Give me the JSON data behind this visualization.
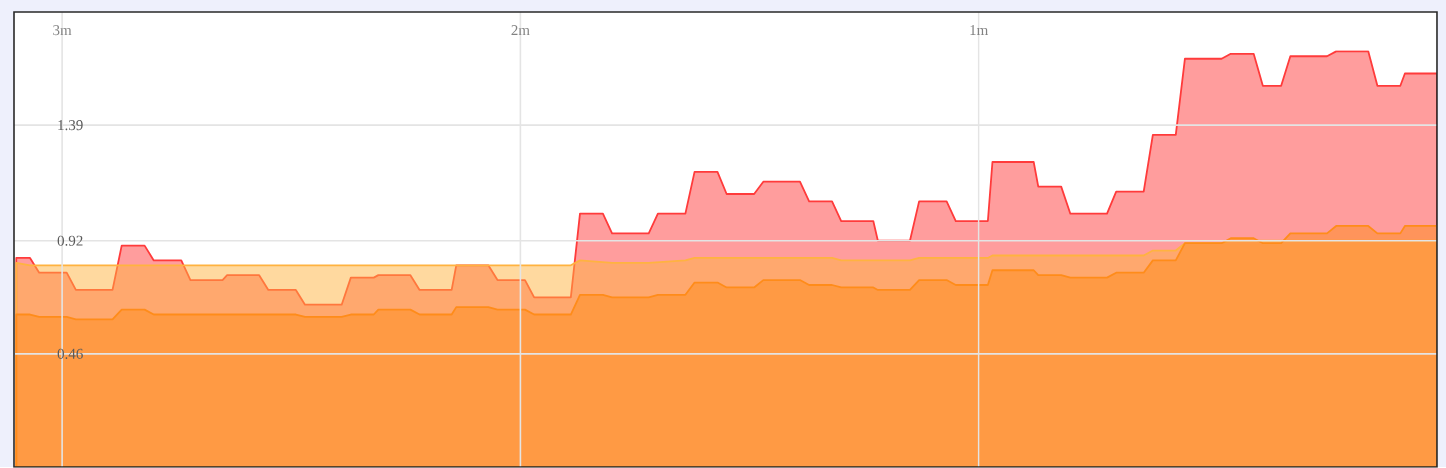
{
  "chart_data": {
    "type": "area",
    "xlim": [
      3.105,
      0
    ],
    "ylim": [
      0,
      1.85
    ],
    "xticks": [
      {
        "value": 3,
        "label": "3m"
      },
      {
        "value": 2,
        "label": "2m"
      },
      {
        "value": 1,
        "label": "1m"
      }
    ],
    "yticks": [
      0.46,
      0.92,
      1.39
    ],
    "grid": true,
    "series": [
      {
        "color": "#ff3b3b",
        "x": [
          3.1,
          3.07,
          3.05,
          2.99,
          2.97,
          2.89,
          2.87,
          2.82,
          2.8,
          2.74,
          2.72,
          2.65,
          2.64,
          2.57,
          2.55,
          2.49,
          2.47,
          2.39,
          2.37,
          2.32,
          2.31,
          2.24,
          2.22,
          2.15,
          2.14,
          2.07,
          2.05,
          1.99,
          1.97,
          1.89,
          1.87,
          1.82,
          1.8,
          1.72,
          1.7,
          1.64,
          1.62,
          1.57,
          1.55,
          1.49,
          1.47,
          1.39,
          1.37,
          1.32,
          1.3,
          1.23,
          1.22,
          1.15,
          1.13,
          1.07,
          1.05,
          0.98,
          0.97,
          0.88,
          0.87,
          0.82,
          0.8,
          0.72,
          0.7,
          0.64,
          0.62,
          0.57,
          0.55,
          0.47,
          0.45,
          0.4,
          0.38,
          0.34,
          0.32,
          0.24,
          0.22,
          0.15,
          0.13,
          0.08,
          0.07,
          0
        ],
        "values": [
          0.85,
          0.85,
          0.79,
          0.79,
          0.72,
          0.72,
          0.9,
          0.9,
          0.84,
          0.84,
          0.76,
          0.76,
          0.78,
          0.78,
          0.72,
          0.72,
          0.66,
          0.66,
          0.77,
          0.77,
          0.78,
          0.78,
          0.72,
          0.72,
          0.82,
          0.82,
          0.76,
          0.76,
          0.69,
          0.69,
          1.03,
          1.03,
          0.95,
          0.95,
          1.03,
          1.03,
          1.2,
          1.2,
          1.11,
          1.11,
          1.16,
          1.16,
          1.08,
          1.08,
          1.0,
          1.0,
          0.92,
          0.92,
          1.08,
          1.08,
          1.0,
          1.0,
          1.24,
          1.24,
          1.14,
          1.14,
          1.03,
          1.03,
          1.12,
          1.12,
          1.35,
          1.35,
          1.66,
          1.66,
          1.68,
          1.68,
          1.55,
          1.55,
          1.67,
          1.67,
          1.69,
          1.69,
          1.55,
          1.55,
          1.6,
          1.6
        ]
      },
      {
        "color": "#ffb340",
        "x": [
          3.1,
          3.07,
          1.89,
          1.87,
          1.8,
          1.72,
          1.64,
          1.62,
          1.32,
          1.3,
          1.15,
          1.13,
          0.98,
          0.97,
          0.64,
          0.62,
          0.57,
          0.55,
          0.47,
          0.45,
          0
        ],
        "values": [
          0.83,
          0.82,
          0.82,
          0.84,
          0.83,
          0.83,
          0.84,
          0.85,
          0.85,
          0.84,
          0.84,
          0.85,
          0.85,
          0.86,
          0.86,
          0.88,
          0.88,
          0.91,
          0.91,
          0.92,
          0.92
        ]
      },
      {
        "color": "#ff8c1a",
        "x": [
          3.1,
          3.07,
          3.05,
          2.99,
          2.97,
          2.89,
          2.87,
          2.82,
          2.8,
          2.49,
          2.47,
          2.39,
          2.37,
          2.32,
          2.31,
          2.24,
          2.22,
          2.15,
          2.14,
          2.07,
          2.05,
          1.99,
          1.97,
          1.89,
          1.87,
          1.82,
          1.8,
          1.72,
          1.7,
          1.64,
          1.62,
          1.57,
          1.55,
          1.49,
          1.47,
          1.39,
          1.37,
          1.32,
          1.3,
          1.23,
          1.22,
          1.15,
          1.13,
          1.07,
          1.05,
          0.98,
          0.97,
          0.88,
          0.87,
          0.82,
          0.8,
          0.72,
          0.7,
          0.64,
          0.62,
          0.57,
          0.55,
          0.47,
          0.45,
          0.4,
          0.38,
          0.34,
          0.32,
          0.24,
          0.22,
          0.15,
          0.13,
          0.08,
          0.07,
          0
        ],
        "values": [
          0.62,
          0.62,
          0.61,
          0.61,
          0.6,
          0.6,
          0.64,
          0.64,
          0.62,
          0.62,
          0.61,
          0.61,
          0.62,
          0.62,
          0.64,
          0.64,
          0.62,
          0.62,
          0.65,
          0.65,
          0.64,
          0.64,
          0.62,
          0.62,
          0.7,
          0.7,
          0.69,
          0.69,
          0.7,
          0.7,
          0.75,
          0.75,
          0.73,
          0.73,
          0.76,
          0.76,
          0.74,
          0.74,
          0.73,
          0.73,
          0.72,
          0.72,
          0.76,
          0.76,
          0.74,
          0.74,
          0.8,
          0.8,
          0.78,
          0.78,
          0.77,
          0.77,
          0.79,
          0.79,
          0.84,
          0.84,
          0.91,
          0.91,
          0.93,
          0.93,
          0.91,
          0.91,
          0.95,
          0.95,
          0.98,
          0.98,
          0.95,
          0.95,
          0.98,
          0.98
        ]
      }
    ]
  }
}
